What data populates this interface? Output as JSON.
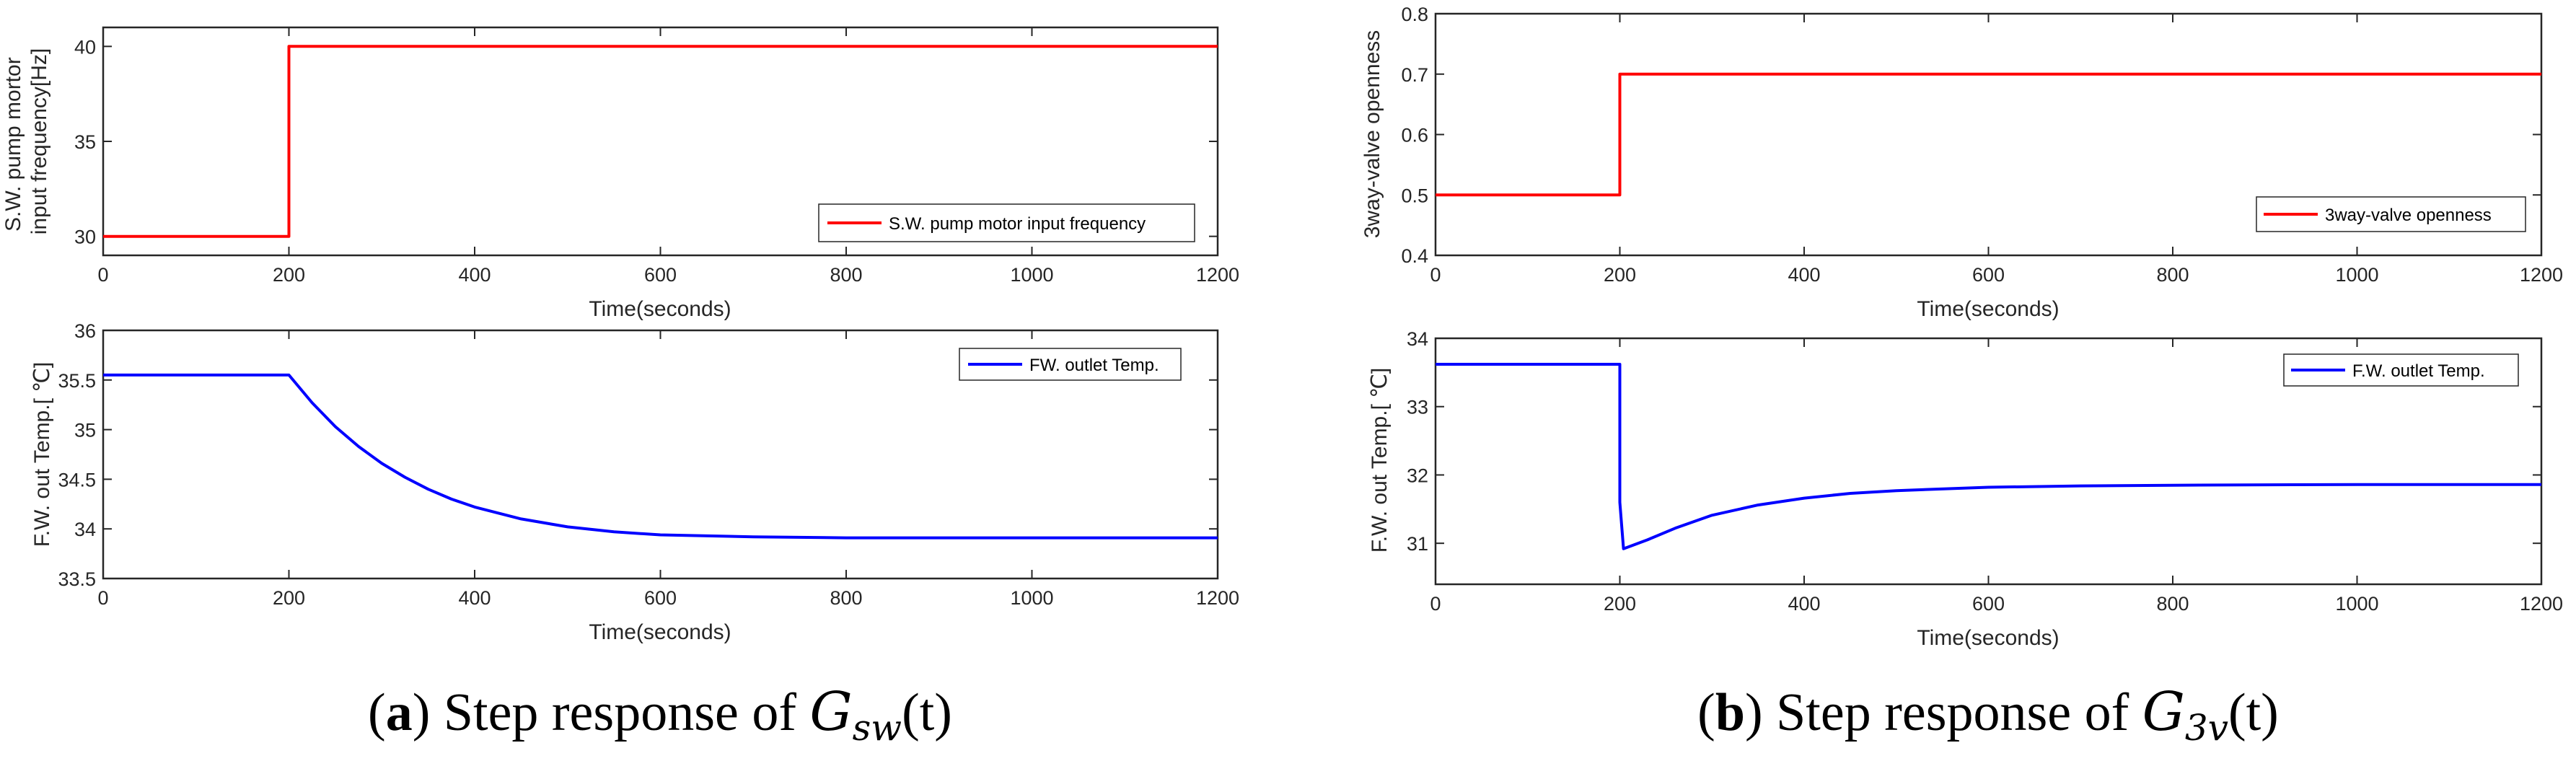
{
  "chart_data": [
    {
      "id": "a_top",
      "type": "line",
      "xlabel": "Time(seconds)",
      "ylabel": [
        "S.W. pump mortor",
        "input frequency[Hz]"
      ],
      "xlim": [
        0,
        1200
      ],
      "ylim": [
        29,
        41
      ],
      "xticks": [
        0,
        200,
        400,
        600,
        800,
        1000,
        1200
      ],
      "yticks": [
        30,
        35,
        40
      ],
      "ytick_labels": [
        "30",
        "35",
        "40"
      ],
      "grid": false,
      "legend_position": "bottom-right",
      "series": [
        {
          "name": "S.W. pump motor input frequency",
          "color": "#ff0000",
          "x": [
            0,
            200,
            200,
            1200
          ],
          "y": [
            30,
            30,
            40,
            40
          ]
        }
      ]
    },
    {
      "id": "a_bottom",
      "type": "line",
      "xlabel": "Time(seconds)",
      "ylabel": [
        "F.W. out Temp.[ ℃]"
      ],
      "xlim": [
        0,
        1200
      ],
      "ylim": [
        33.5,
        36
      ],
      "xticks": [
        0,
        200,
        400,
        600,
        800,
        1000,
        1200
      ],
      "yticks": [
        33.5,
        34,
        34.5,
        35,
        35.5,
        36
      ],
      "ytick_labels": [
        "33.5",
        "34",
        "34.5",
        "35",
        "35.5",
        "36"
      ],
      "grid": false,
      "legend_position": "top-right",
      "series": [
        {
          "name": "FW. outlet Temp.",
          "color": "#0000ff",
          "x": [
            0,
            200,
            225,
            250,
            275,
            300,
            325,
            350,
            375,
            400,
            450,
            500,
            550,
            600,
            700,
            800,
            1000,
            1200
          ],
          "y": [
            35.55,
            35.55,
            35.27,
            35.03,
            34.83,
            34.66,
            34.52,
            34.4,
            34.3,
            34.22,
            34.1,
            34.02,
            33.97,
            33.94,
            33.92,
            33.91,
            33.91,
            33.91
          ]
        }
      ]
    },
    {
      "id": "b_top",
      "type": "line",
      "xlabel": "Time(seconds)",
      "ylabel": [
        "3way-valve openness"
      ],
      "xlim": [
        0,
        1200
      ],
      "ylim": [
        0.4,
        0.8
      ],
      "xticks": [
        0,
        200,
        400,
        600,
        800,
        1000,
        1200
      ],
      "yticks": [
        0.4,
        0.5,
        0.6,
        0.7,
        0.8
      ],
      "ytick_labels": [
        "0.4",
        "0.5",
        "0.6",
        "0.7",
        "0.8"
      ],
      "grid": false,
      "legend_position": "bottom-right",
      "series": [
        {
          "name": "3way-valve openness",
          "color": "#ff0000",
          "x": [
            0,
            200,
            200,
            1200
          ],
          "y": [
            0.5,
            0.5,
            0.7,
            0.7
          ]
        }
      ]
    },
    {
      "id": "b_bottom",
      "type": "line",
      "xlabel": "Time(seconds)",
      "ylabel": [
        "F.W. out Temp.[ ℃]"
      ],
      "xlim": [
        0,
        1200
      ],
      "ylim": [
        30.4,
        34
      ],
      "xticks": [
        0,
        200,
        400,
        600,
        800,
        1000,
        1200
      ],
      "yticks": [
        31,
        32,
        33,
        34
      ],
      "ytick_labels": [
        "31",
        "32",
        "33",
        "34"
      ],
      "grid": false,
      "legend_position": "top-right",
      "series": [
        {
          "name": "F.W. outlet Temp.",
          "color": "#0000ff",
          "x": [
            0,
            200,
            200,
            204,
            230,
            260,
            300,
            350,
            400,
            450,
            500,
            600,
            700,
            800,
            1000,
            1200
          ],
          "y": [
            33.62,
            33.62,
            31.6,
            30.92,
            31.05,
            31.22,
            31.41,
            31.56,
            31.66,
            31.73,
            31.77,
            31.82,
            31.84,
            31.85,
            31.86,
            31.86
          ]
        }
      ]
    }
  ],
  "captions": [
    {
      "label": "a",
      "text": " Step response of ",
      "math": "G",
      "sub": "sw",
      "arg": "(t)"
    },
    {
      "label": "b",
      "text": " Step response of ",
      "math": "G",
      "sub": "3v",
      "arg": "(t)"
    }
  ]
}
